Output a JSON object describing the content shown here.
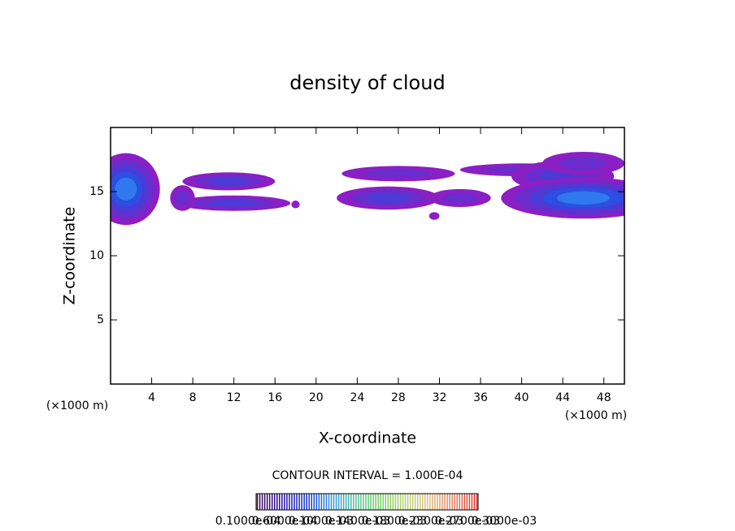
{
  "chart_data": {
    "type": "contour",
    "title": "density of cloud",
    "x_label": "X-coordinate",
    "y_label": "Z-coordinate",
    "x_unit": "(×1000 m)",
    "y_unit": "(×1000 m)",
    "annotation": "CONTOUR INTERVAL = 1.000E-04",
    "xlim": [
      0,
      50
    ],
    "xticks": [
      4,
      8,
      12,
      16,
      20,
      24,
      28,
      32,
      36,
      40,
      44,
      48
    ],
    "ylim": [
      0,
      20
    ],
    "yticks": [
      5,
      10,
      15
    ],
    "clouds": {
      "x": [
        1.5,
        11.5,
        12,
        7,
        18,
        28,
        27,
        34,
        31.5,
        40,
        44,
        46,
        46
      ],
      "z": [
        15.2,
        15.8,
        14.1,
        14.5,
        14,
        16.4,
        14.5,
        14.5,
        13.1,
        16.7,
        16.2,
        14.5,
        17.2
      ],
      "x_radius": [
        3.3,
        4.5,
        5.5,
        1.2,
        0.4,
        5.5,
        5,
        3,
        0.5,
        6,
        5,
        8,
        4
      ],
      "z_radius": [
        2.8,
        0.7,
        0.6,
        1,
        0.3,
        0.6,
        0.9,
        0.7,
        0.3,
        0.5,
        1.2,
        1.6,
        0.9
      ],
      "density": [
        0.00026,
        0.00012,
        0.00014,
        6e-05,
        3e-05,
        8e-05,
        0.00016,
        8e-05,
        3e-05,
        8e-05,
        0.00012,
        0.00029,
        0.0001
      ]
    },
    "level_colors": [
      "#8a1fc4",
      "#6a2ccc",
      "#4a3ad6",
      "#2c4ee2",
      "#2f78ee"
    ],
    "colorbar": {
      "colors": [
        "#3a0a4a",
        "#2a0aa0",
        "#1030d0",
        "#3090e0",
        "#50c0a0",
        "#70d060",
        "#b0d070",
        "#e0c080",
        "#e08060",
        "#e03030"
      ],
      "labels": [
        "0.1000e-04",
        "0.6000e-04",
        "0.1000e-03",
        "0.1400e-03",
        "0.1800e-03",
        "0.2300e-03",
        "0.2700e-03",
        "0.3000e-03"
      ]
    }
  }
}
